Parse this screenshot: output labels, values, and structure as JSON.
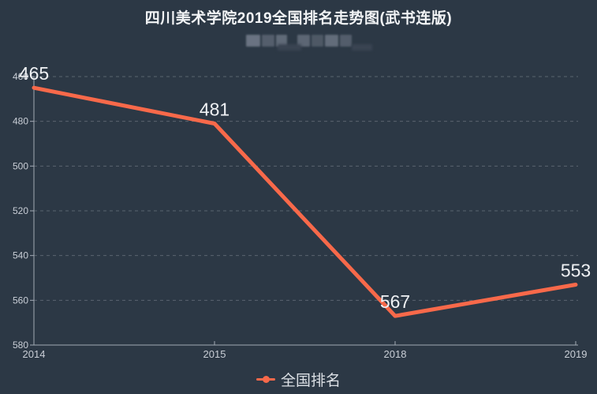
{
  "header": {
    "title": "四川美术学院2019全国排名走势图(武书连版)",
    "subtitle_redacted": true
  },
  "chart_data": {
    "type": "line",
    "title": "四川美术学院2019全国排名走势图(武书连版)",
    "categories": [
      "2014",
      "2015",
      "2018",
      "2019"
    ],
    "series": [
      {
        "name": "全国排名",
        "values": [
          465,
          481,
          567,
          553
        ]
      }
    ],
    "data_labels": [
      "465",
      "481",
      "567",
      "553"
    ],
    "xlabel": "",
    "ylabel": "",
    "y_axis": {
      "min": 460,
      "max": 580,
      "inverted": true,
      "ticks": [
        460,
        480,
        500,
        520,
        540,
        560,
        580
      ]
    },
    "grid": "dashed horizontal",
    "legend": {
      "position": "bottom",
      "items": [
        "全国排名"
      ]
    },
    "colors": {
      "line": "#F8694A",
      "background": "#2C3845",
      "gridline": "#59636F",
      "axis": "#A2AAB4",
      "tick_label": "#C9CED6",
      "data_label": "#F0F2F5",
      "title": "#F2F4F6",
      "legend_text": "#DCE0E5"
    }
  }
}
